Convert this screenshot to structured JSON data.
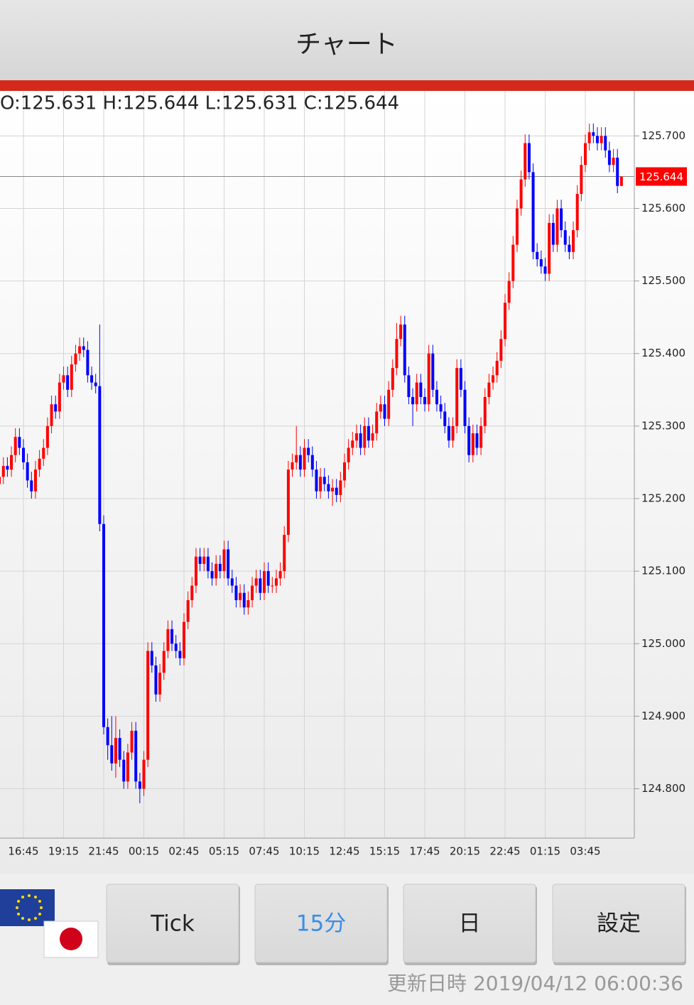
{
  "header": {
    "title": "チャート"
  },
  "chart_data": {
    "type": "candlestick",
    "info_text": "O:125.631 H:125.644 L:125.631 C:125.644",
    "up_color": "#ff0000",
    "down_color": "#0000ff",
    "grid": true,
    "ylim": [
      124.732,
      125.762
    ],
    "yticks": [
      {
        "value": 124.8,
        "label": "124.800"
      },
      {
        "value": 124.9,
        "label": "124.900"
      },
      {
        "value": 125.0,
        "label": "125.000"
      },
      {
        "value": 125.1,
        "label": "125.100"
      },
      {
        "value": 125.2,
        "label": "125.200"
      },
      {
        "value": 125.3,
        "label": "125.300"
      },
      {
        "value": 125.4,
        "label": "125.400"
      },
      {
        "value": 125.5,
        "label": "125.500"
      },
      {
        "value": 125.6,
        "label": "125.600"
      },
      {
        "value": 125.7,
        "label": "125.700"
      }
    ],
    "current_price": 125.644,
    "current_price_color": "#ff0000",
    "categories": [
      null,
      null,
      null,
      null,
      null,
      null,
      "16:45",
      null,
      null,
      null,
      null,
      null,
      null,
      null,
      null,
      null,
      "19:15",
      null,
      null,
      null,
      null,
      null,
      null,
      null,
      null,
      null,
      "21:45",
      null,
      null,
      null,
      null,
      null,
      null,
      null,
      null,
      null,
      "00:15",
      null,
      null,
      null,
      null,
      null,
      null,
      null,
      null,
      null,
      "02:45",
      null,
      null,
      null,
      null,
      null,
      null,
      null,
      null,
      null,
      "05:15",
      null,
      null,
      null,
      null,
      null,
      null,
      null,
      null,
      null,
      "07:45",
      null,
      null,
      null,
      null,
      null,
      null,
      null,
      null,
      null,
      "10:15",
      null,
      null,
      null,
      null,
      null,
      null,
      null,
      null,
      null,
      "12:45",
      null,
      null,
      null,
      null,
      null,
      null,
      null,
      null,
      null,
      "15:15",
      null,
      null,
      null,
      null,
      null,
      null,
      null,
      null,
      null,
      "17:45",
      null,
      null,
      null,
      null,
      null,
      null,
      null,
      null,
      null,
      "20:15",
      null,
      null,
      null,
      null,
      null,
      null,
      null,
      null,
      null,
      "22:45",
      null,
      null,
      null,
      null,
      null,
      null,
      null,
      null,
      null,
      "01:15",
      null,
      null,
      null,
      null,
      null,
      null,
      null,
      null,
      null,
      "03:45",
      null,
      null,
      null,
      null,
      null,
      null,
      null,
      null,
      null
    ],
    "ohlc": [
      [
        125.22,
        125.242,
        125.21,
        125.23
      ],
      [
        125.23,
        125.257,
        125.22,
        125.245
      ],
      [
        125.245,
        125.257,
        125.23,
        125.24
      ],
      [
        125.24,
        125.272,
        125.23,
        125.26
      ],
      [
        125.26,
        125.297,
        125.25,
        125.285
      ],
      [
        125.285,
        125.297,
        125.26,
        125.27
      ],
      [
        125.27,
        125.282,
        125.24,
        125.25
      ],
      [
        125.25,
        125.262,
        125.215,
        125.225
      ],
      [
        125.225,
        125.237,
        125.2,
        125.21
      ],
      [
        125.21,
        125.252,
        125.2,
        125.24
      ],
      [
        125.24,
        125.267,
        125.23,
        125.255
      ],
      [
        125.255,
        125.282,
        125.245,
        125.27
      ],
      [
        125.27,
        125.312,
        125.26,
        125.3
      ],
      [
        125.3,
        125.342,
        125.29,
        125.33
      ],
      [
        125.33,
        125.342,
        125.31,
        125.32
      ],
      [
        125.32,
        125.372,
        125.31,
        125.36
      ],
      [
        125.36,
        125.382,
        125.35,
        125.37
      ],
      [
        125.37,
        125.382,
        125.34,
        125.35
      ],
      [
        125.35,
        125.397,
        125.34,
        125.385
      ],
      [
        125.385,
        125.412,
        125.375,
        125.4
      ],
      [
        125.4,
        125.422,
        125.39,
        125.41
      ],
      [
        125.41,
        125.422,
        125.395,
        125.405
      ],
      [
        125.405,
        125.417,
        125.36,
        125.37
      ],
      [
        125.37,
        125.382,
        125.35,
        125.36
      ],
      [
        125.36,
        125.372,
        125.345,
        125.355
      ],
      [
        125.355,
        125.44,
        125.155,
        125.165
      ],
      [
        125.165,
        125.177,
        124.875,
        124.885
      ],
      [
        124.885,
        124.897,
        124.84,
        124.86
      ],
      [
        124.86,
        124.9,
        124.825,
        124.835
      ],
      [
        124.835,
        124.9,
        124.815,
        124.87
      ],
      [
        124.87,
        124.882,
        124.83,
        124.84
      ],
      [
        124.84,
        124.852,
        124.8,
        124.81
      ],
      [
        124.81,
        124.862,
        124.8,
        124.85
      ],
      [
        124.85,
        124.892,
        124.84,
        124.88
      ],
      [
        124.88,
        124.892,
        124.8,
        124.81
      ],
      [
        124.81,
        124.822,
        124.78,
        124.8
      ],
      [
        124.8,
        124.852,
        124.79,
        124.84
      ],
      [
        124.84,
        125.002,
        124.83,
        124.99
      ],
      [
        124.99,
        125.002,
        124.96,
        124.97
      ],
      [
        124.97,
        124.982,
        124.92,
        124.93
      ],
      [
        124.93,
        124.972,
        124.92,
        124.96
      ],
      [
        124.96,
        125.002,
        124.95,
        124.99
      ],
      [
        124.99,
        125.032,
        124.98,
        125.02
      ],
      [
        125.02,
        125.032,
        124.99,
        125.0
      ],
      [
        125.0,
        125.012,
        124.98,
        124.99
      ],
      [
        124.99,
        125.002,
        124.97,
        124.98
      ],
      [
        124.98,
        125.042,
        124.97,
        125.03
      ],
      [
        125.03,
        125.072,
        125.02,
        125.06
      ],
      [
        125.06,
        125.092,
        125.05,
        125.08
      ],
      [
        125.08,
        125.132,
        125.07,
        125.12
      ],
      [
        125.12,
        125.132,
        125.1,
        125.11
      ],
      [
        125.11,
        125.132,
        125.1,
        125.12
      ],
      [
        125.12,
        125.132,
        125.09,
        125.1
      ],
      [
        125.1,
        125.112,
        125.08,
        125.09
      ],
      [
        125.09,
        125.122,
        125.08,
        125.11
      ],
      [
        125.11,
        125.122,
        125.09,
        125.1
      ],
      [
        125.1,
        125.142,
        125.09,
        125.13
      ],
      [
        125.13,
        125.142,
        125.08,
        125.09
      ],
      [
        125.09,
        125.102,
        125.07,
        125.08
      ],
      [
        125.08,
        125.092,
        125.05,
        125.06
      ],
      [
        125.06,
        125.082,
        125.05,
        125.07
      ],
      [
        125.07,
        125.082,
        125.04,
        125.05
      ],
      [
        125.05,
        125.072,
        125.04,
        125.06
      ],
      [
        125.06,
        125.092,
        125.05,
        125.08
      ],
      [
        125.08,
        125.102,
        125.07,
        125.09
      ],
      [
        125.09,
        125.102,
        125.06,
        125.07
      ],
      [
        125.07,
        125.112,
        125.06,
        125.1
      ],
      [
        125.1,
        125.112,
        125.07,
        125.08
      ],
      [
        125.08,
        125.092,
        125.07,
        125.08
      ],
      [
        125.08,
        125.102,
        125.07,
        125.09
      ],
      [
        125.09,
        125.112,
        125.08,
        125.1
      ],
      [
        125.1,
        125.162,
        125.09,
        125.15
      ],
      [
        125.15,
        125.252,
        125.14,
        125.24
      ],
      [
        125.24,
        125.262,
        125.23,
        125.25
      ],
      [
        125.25,
        125.3,
        125.24,
        125.26
      ],
      [
        125.26,
        125.272,
        125.23,
        125.24
      ],
      [
        125.24,
        125.282,
        125.23,
        125.27
      ],
      [
        125.27,
        125.282,
        125.25,
        125.26
      ],
      [
        125.26,
        125.272,
        125.23,
        125.24
      ],
      [
        125.24,
        125.252,
        125.2,
        125.21
      ],
      [
        125.21,
        125.242,
        125.2,
        125.23
      ],
      [
        125.23,
        125.242,
        125.21,
        125.22
      ],
      [
        125.22,
        125.232,
        125.2,
        125.21
      ],
      [
        125.21,
        125.227,
        125.19,
        125.215
      ],
      [
        125.215,
        125.227,
        125.195,
        125.205
      ],
      [
        125.205,
        125.237,
        125.195,
        125.225
      ],
      [
        125.225,
        125.262,
        125.215,
        125.25
      ],
      [
        125.25,
        125.282,
        125.24,
        125.27
      ],
      [
        125.27,
        125.292,
        125.26,
        125.28
      ],
      [
        125.28,
        125.302,
        125.27,
        125.29
      ],
      [
        125.29,
        125.302,
        125.26,
        125.27
      ],
      [
        125.27,
        125.312,
        125.26,
        125.3
      ],
      [
        125.3,
        125.312,
        125.27,
        125.28
      ],
      [
        125.28,
        125.302,
        125.27,
        125.29
      ],
      [
        125.29,
        125.332,
        125.28,
        125.32
      ],
      [
        125.32,
        125.342,
        125.31,
        125.33
      ],
      [
        125.33,
        125.342,
        125.3,
        125.31
      ],
      [
        125.31,
        125.362,
        125.3,
        125.35
      ],
      [
        125.35,
        125.392,
        125.34,
        125.38
      ],
      [
        125.38,
        125.442,
        125.37,
        125.42
      ],
      [
        125.42,
        125.452,
        125.41,
        125.44
      ],
      [
        125.44,
        125.452,
        125.36,
        125.37
      ],
      [
        125.37,
        125.382,
        125.33,
        125.34
      ],
      [
        125.34,
        125.352,
        125.3,
        125.33
      ],
      [
        125.33,
        125.372,
        125.32,
        125.36
      ],
      [
        125.36,
        125.372,
        125.33,
        125.34
      ],
      [
        125.34,
        125.352,
        125.32,
        125.33
      ],
      [
        125.33,
        125.412,
        125.32,
        125.4
      ],
      [
        125.4,
        125.412,
        125.34,
        125.35
      ],
      [
        125.35,
        125.362,
        125.32,
        125.33
      ],
      [
        125.33,
        125.342,
        125.31,
        125.32
      ],
      [
        125.32,
        125.332,
        125.29,
        125.3
      ],
      [
        125.3,
        125.312,
        125.27,
        125.28
      ],
      [
        125.28,
        125.312,
        125.27,
        125.3
      ],
      [
        125.3,
        125.392,
        125.29,
        125.38
      ],
      [
        125.38,
        125.392,
        125.34,
        125.35
      ],
      [
        125.35,
        125.362,
        125.29,
        125.3
      ],
      [
        125.3,
        125.312,
        125.25,
        125.26
      ],
      [
        125.26,
        125.302,
        125.25,
        125.29
      ],
      [
        125.29,
        125.302,
        125.26,
        125.27
      ],
      [
        125.27,
        125.312,
        125.26,
        125.3
      ],
      [
        125.3,
        125.352,
        125.29,
        125.34
      ],
      [
        125.34,
        125.372,
        125.33,
        125.36
      ],
      [
        125.36,
        125.382,
        125.35,
        125.37
      ],
      [
        125.37,
        125.402,
        125.36,
        125.39
      ],
      [
        125.39,
        125.432,
        125.38,
        125.42
      ],
      [
        125.42,
        125.482,
        125.41,
        125.47
      ],
      [
        125.47,
        125.512,
        125.46,
        125.5
      ],
      [
        125.5,
        125.562,
        125.49,
        125.55
      ],
      [
        125.55,
        125.612,
        125.54,
        125.6
      ],
      [
        125.6,
        125.652,
        125.59,
        125.64
      ],
      [
        125.64,
        125.702,
        125.63,
        125.69
      ],
      [
        125.69,
        125.702,
        125.64,
        125.65
      ],
      [
        125.65,
        125.662,
        125.53,
        125.54
      ],
      [
        125.54,
        125.552,
        125.52,
        125.53
      ],
      [
        125.53,
        125.542,
        125.51,
        125.52
      ],
      [
        125.52,
        125.532,
        125.5,
        125.51
      ],
      [
        125.51,
        125.592,
        125.5,
        125.58
      ],
      [
        125.58,
        125.592,
        125.54,
        125.55
      ],
      [
        125.55,
        125.612,
        125.54,
        125.6
      ],
      [
        125.6,
        125.612,
        125.56,
        125.57
      ],
      [
        125.57,
        125.582,
        125.54,
        125.55
      ],
      [
        125.55,
        125.562,
        125.53,
        125.54
      ],
      [
        125.54,
        125.582,
        125.53,
        125.57
      ],
      [
        125.57,
        125.632,
        125.56,
        125.62
      ],
      [
        125.62,
        125.672,
        125.61,
        125.66
      ],
      [
        125.66,
        125.702,
        125.65,
        125.69
      ],
      [
        125.69,
        125.717,
        125.68,
        125.705
      ],
      [
        125.705,
        125.717,
        125.69,
        125.7
      ],
      [
        125.7,
        125.712,
        125.68,
        125.69
      ],
      [
        125.69,
        125.712,
        125.68,
        125.7
      ],
      [
        125.7,
        125.712,
        125.67,
        125.68
      ],
      [
        125.68,
        125.692,
        125.65,
        125.66
      ],
      [
        125.66,
        125.682,
        125.65,
        125.67
      ],
      [
        125.67,
        125.682,
        125.621,
        125.631
      ],
      [
        125.631,
        125.644,
        125.631,
        125.644
      ]
    ]
  },
  "buttons": [
    {
      "label": "Tick",
      "color": "#222222"
    },
    {
      "label": "15分",
      "color": "#3a8ee6"
    },
    {
      "label": "日",
      "color": "#222222"
    },
    {
      "label": "設定",
      "color": "#222222"
    }
  ],
  "footer": {
    "updated": "更新日時 2019/04/12 06:00:36"
  }
}
